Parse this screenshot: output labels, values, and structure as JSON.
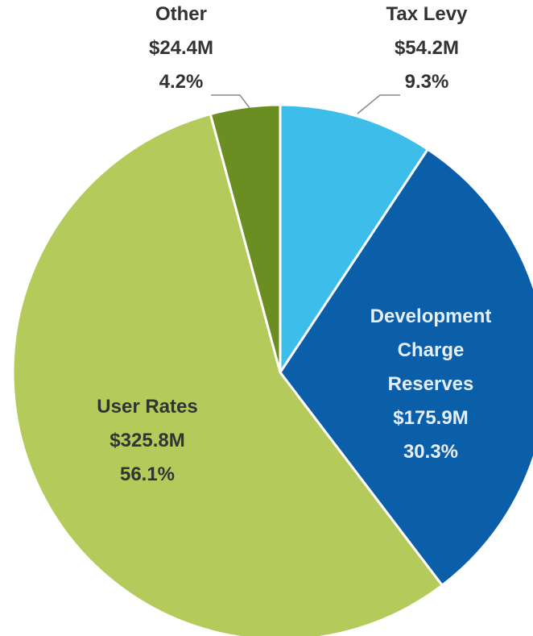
{
  "chart_data": {
    "type": "pie",
    "categories": [
      "Tax Levy",
      "Development Charge Reserves",
      "User Rates",
      "Other"
    ],
    "values": [
      9.3,
      30.3,
      56.1,
      4.2
    ],
    "value_labels": [
      "9.3%",
      "30.3%",
      "56.1%",
      "4.2%"
    ],
    "amounts": [
      54200000,
      175900000,
      325800000,
      24400000
    ],
    "amount_labels": [
      "$54.2M",
      "$175.9M",
      "$325.8M",
      "$24.4M"
    ],
    "colors": [
      "#3dbde9",
      "#0b5fa9",
      "#b4ca5b",
      "#6b8e23"
    ]
  }
}
